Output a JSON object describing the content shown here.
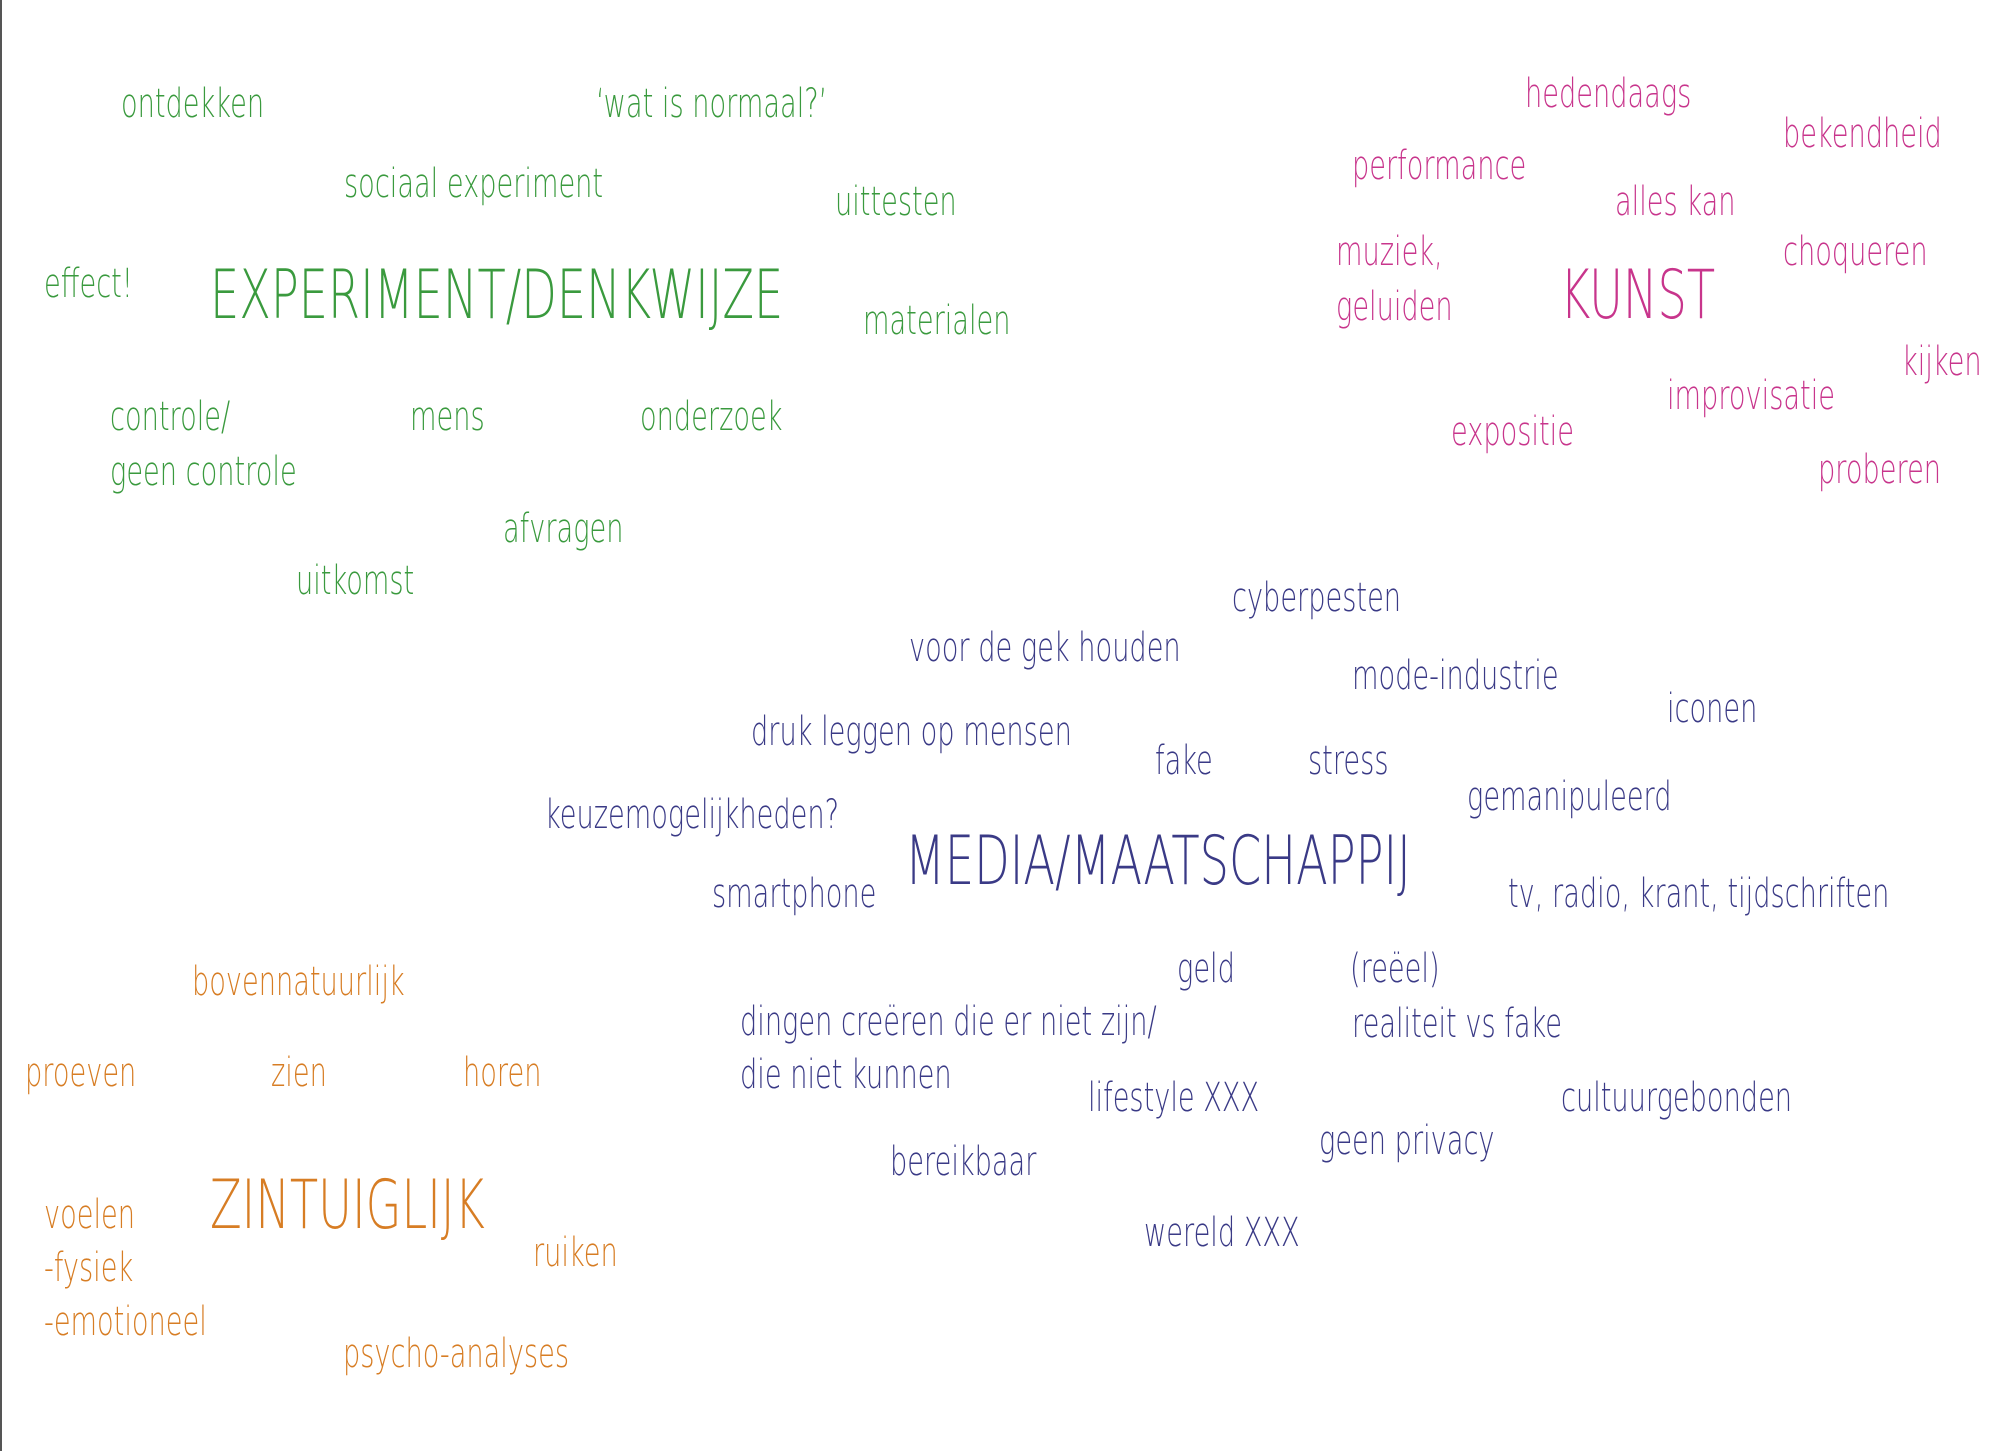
{
  "colors": {
    "green": "#3a9a3e",
    "pink": "#c8358c",
    "navy": "#3a3a86",
    "orange": "#d77d24"
  },
  "experiment": {
    "title": "EXPERIMENT/DENKWIJZE",
    "words": {
      "ontdekken": "ontdekken",
      "wat_is_normaal": "‘wat is normaal?’",
      "sociaal_experiment": "sociaal experiment",
      "uittesten": "uittesten",
      "effect": "effect!",
      "materialen": "materialen",
      "controle": "controle/",
      "geen_controle": "geen controle",
      "mens": "mens",
      "onderzoek": "onderzoek",
      "afvragen": "afvragen",
      "uitkomst": "uitkomst"
    }
  },
  "kunst": {
    "title": "KUNST",
    "words": {
      "hedendaags": "hedendaags",
      "bekendheid": "bekendheid",
      "performance": "performance",
      "alles_kan": "alles kan",
      "muziek": "muziek,",
      "geluiden": "geluiden",
      "choqueren": "choqueren",
      "kijken": "kijken",
      "improvisatie": "improvisatie",
      "expositie": "expositie",
      "proberen": "proberen"
    }
  },
  "media": {
    "title": "MEDIA/MAATSCHAPPIJ",
    "words": {
      "cyberpesten": "cyberpesten",
      "voor_de_gek": "voor de gek houden",
      "mode_industrie": "mode-industrie",
      "iconen": "iconen",
      "druk_leggen": "druk leggen op mensen",
      "fake": "fake",
      "stress": "stress",
      "gemanipuleerd": "gemanipuleerd",
      "keuzemogelijkheden": "keuzemogelijkheden?",
      "smartphone": "smartphone",
      "tv_radio": "tv, radio, krant, tijdschriften",
      "geld": "geld",
      "reeel": "(reëel)",
      "realiteit": "realiteit vs fake",
      "dingen_creeren": "dingen creëren die er niet zijn/",
      "die_niet_kunnen": "die niet kunnen",
      "lifestyle": "lifestyle XXX",
      "cultuurgebonden": "cultuurgebonden",
      "geen_privacy": "geen privacy",
      "bereikbaar": "bereikbaar",
      "wereld": "wereld XXX"
    }
  },
  "zintuiglijk": {
    "title": "ZINTUIGLIJK",
    "words": {
      "bovennatuurlijk": "bovennatuurlijk",
      "proeven": "proeven",
      "zien": "zien",
      "horen": "horen",
      "voelen": "voelen",
      "fysiek": "-fysiek",
      "emotioneel": "-emotioneel",
      "ruiken": "ruiken",
      "psycho_analyses": "psycho-analyses"
    }
  }
}
